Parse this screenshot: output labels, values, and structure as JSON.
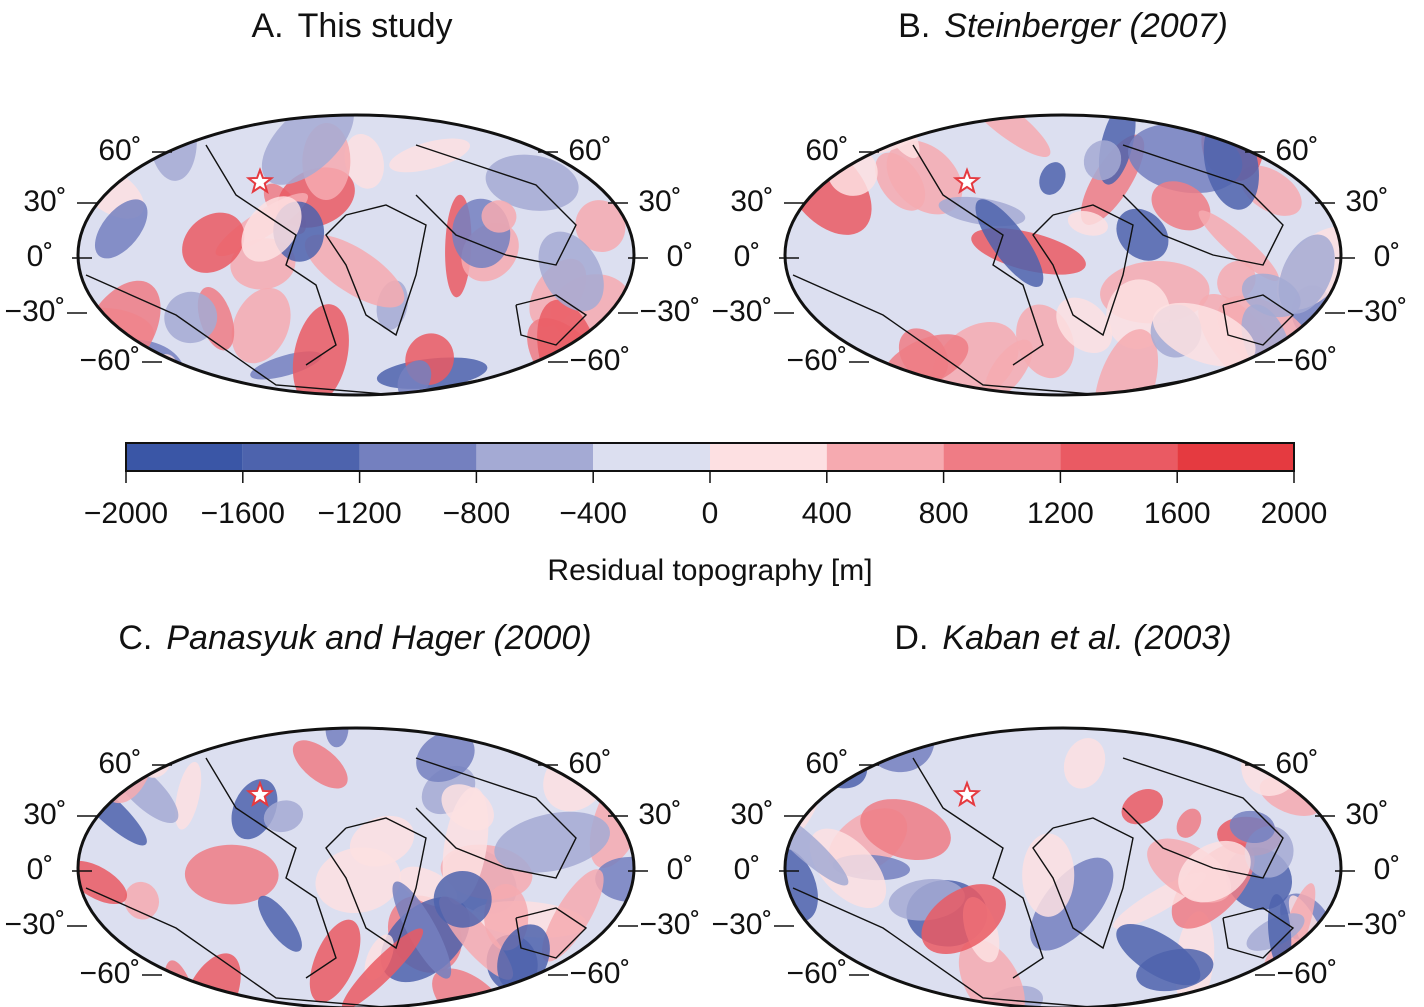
{
  "panels": [
    {
      "letter": "A.",
      "title": "This study",
      "italic": false,
      "lat_labels_left": [
        "60˚",
        "30˚",
        "0˚",
        "−30˚",
        "−60˚"
      ],
      "lat_labels_right": [
        "60˚",
        "30˚",
        "0˚",
        "−30˚",
        "−60˚"
      ]
    },
    {
      "letter": "B.",
      "title": "Steinberger (2007)",
      "italic": true,
      "lat_labels_left": [
        "60˚",
        "30˚",
        "0˚",
        "−30˚",
        "−60˚"
      ],
      "lat_labels_right": [
        "60˚",
        "30˚",
        "0˚",
        "−30˚",
        "−60˚"
      ]
    },
    {
      "letter": "C.",
      "title": "Panasyuk and Hager (2000)",
      "italic": true,
      "lat_labels_left": [
        "60˚",
        "30˚",
        "0˚",
        "−30˚",
        "−60˚"
      ],
      "lat_labels_right": [
        "60˚",
        "30˚",
        "0˚",
        "−30˚",
        "−60˚"
      ]
    },
    {
      "letter": "D.",
      "title": "Kaban et al. (2003)",
      "italic": true,
      "lat_labels_left": [
        "60˚",
        "30˚",
        "0˚",
        "−30˚",
        "−60˚"
      ],
      "lat_labels_right": [
        "60˚",
        "30˚",
        "0˚",
        "−30˚",
        "−60˚"
      ]
    }
  ],
  "colorbar": {
    "label": "Residual topography [m]",
    "range": [
      -2000,
      2000
    ],
    "ticks": [
      {
        "value": -2000,
        "label": "−2000"
      },
      {
        "value": -1600,
        "label": "−1600"
      },
      {
        "value": -1200,
        "label": "−1200"
      },
      {
        "value": -800,
        "label": "−800"
      },
      {
        "value": -400,
        "label": "−400"
      },
      0,
      400,
      800,
      1200,
      1600,
      2000
    ],
    "colors": [
      "#3a56a6",
      "#4d63ad",
      "#7480bf",
      "#a4aad4",
      "#dcdff0",
      "#fde0e2",
      "#f6aab0",
      "#ef7c85",
      "#ea5a63",
      "#e53a40"
    ]
  }
}
